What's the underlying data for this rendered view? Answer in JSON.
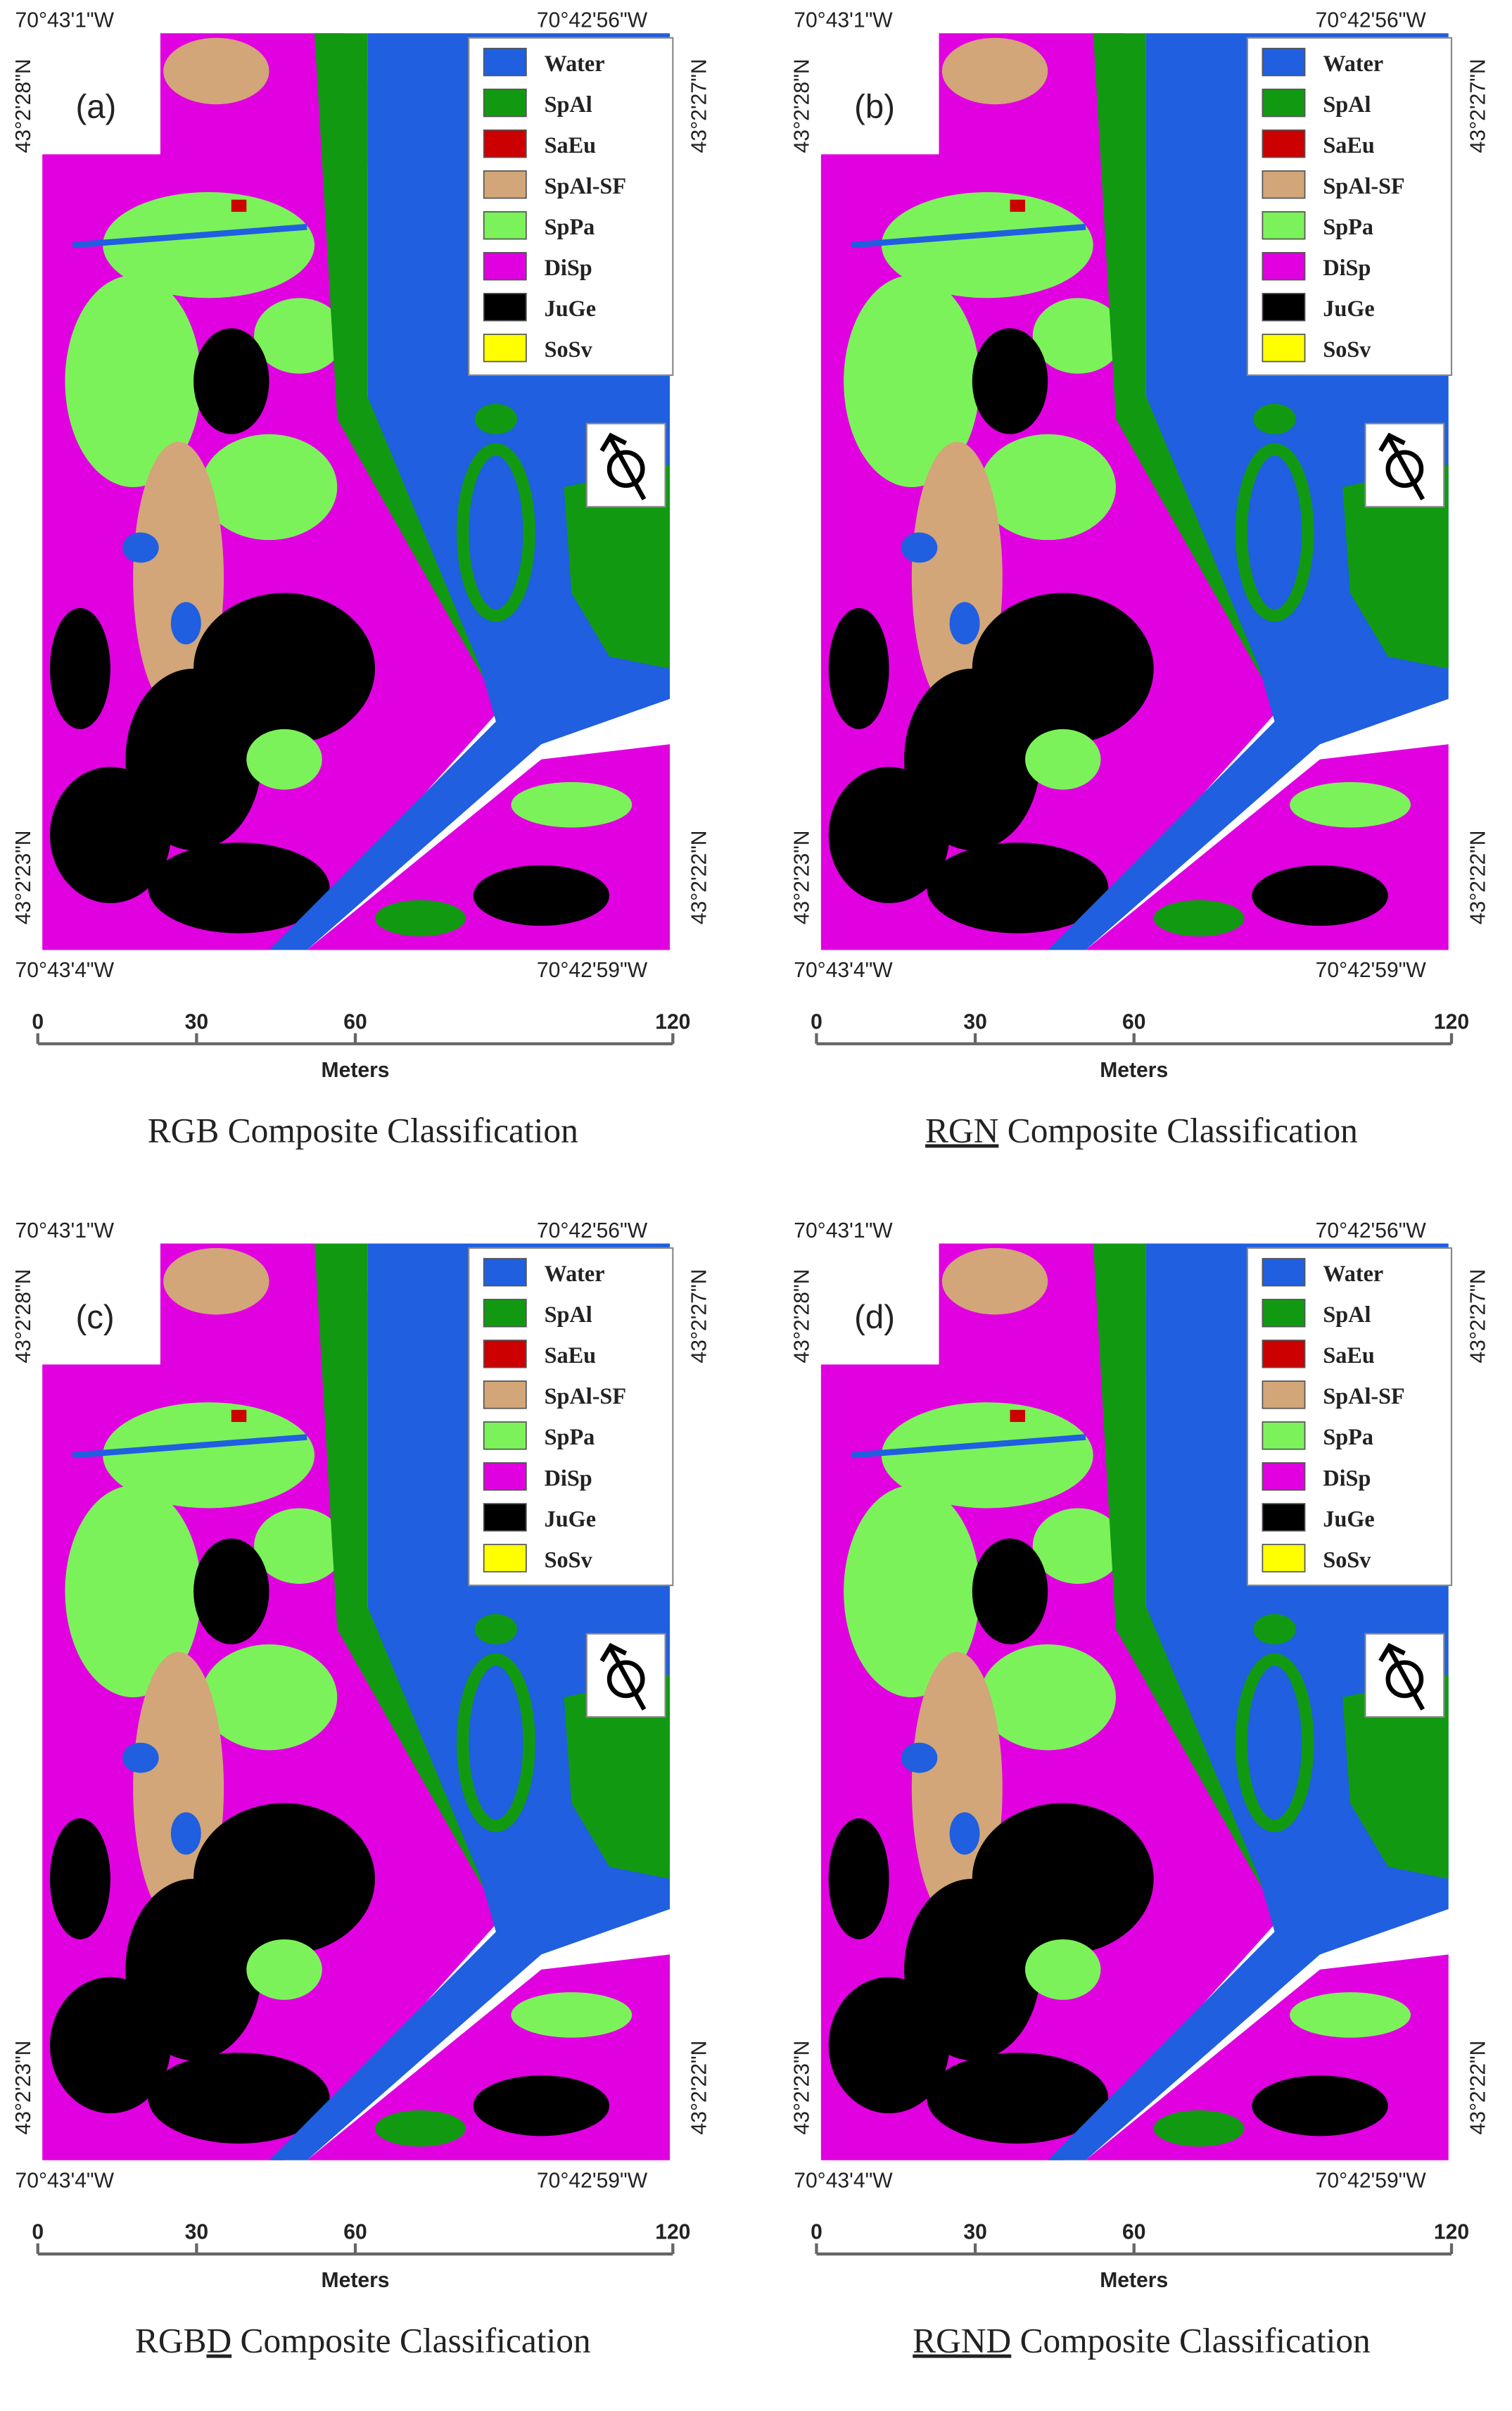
{
  "legend": [
    {
      "label": "Water",
      "color": "#1f5fe0"
    },
    {
      "label": "SpAl",
      "color": "#119a11"
    },
    {
      "label": "SaEu",
      "color": "#cc0000"
    },
    {
      "label": "SpAl-SF",
      "color": "#d2a678"
    },
    {
      "label": "SpPa",
      "color": "#7cf25a"
    },
    {
      "label": "DiSp",
      "color": "#e000e0"
    },
    {
      "label": "JuGe",
      "color": "#000000"
    },
    {
      "label": "SoSv",
      "color": "#ffff00"
    }
  ],
  "scale": {
    "ticks": [
      0,
      30,
      60,
      120
    ],
    "unit": "Meters"
  },
  "panels": [
    {
      "label": "(a)",
      "coords": {
        "top_left": "70°43'1\"W",
        "top_right": "70°42'56\"W",
        "left_top": "43°2'28\"N",
        "right_top": "43°2'27\"N",
        "left_bottom": "43°2'23\"N",
        "right_bottom": "43°2'22\"N",
        "bottom_left": "70°43'4\"W",
        "bottom_right": "70°42'59\"W"
      },
      "caption": [
        {
          "text": "RGB Composite Classification"
        }
      ]
    },
    {
      "label": "(b)",
      "coords": {
        "top_left": "70°43'1\"W",
        "top_right": "70°42'56\"W",
        "left_top": "43°2'28\"N",
        "right_top": "43°2'27\"N",
        "left_bottom": "43°2'23\"N",
        "right_bottom": "43°2'22\"N",
        "bottom_left": "70°43'4\"W",
        "bottom_right": "70°42'59\"W"
      },
      "caption": [
        {
          "text": "RGN",
          "underline": "single"
        },
        {
          "text": " Composite Classification"
        }
      ]
    },
    {
      "label": "(c)",
      "coords": {
        "top_left": "70°43'1\"W",
        "top_right": "70°42'56\"W",
        "left_top": "43°2'28\"N",
        "right_top": "43°2'27\"N",
        "left_bottom": "43°2'23\"N",
        "right_bottom": "43°2'22\"N",
        "bottom_left": "70°43'4\"W",
        "bottom_right": "70°42'59\"W"
      },
      "caption": [
        {
          "text": "RGB"
        },
        {
          "text": "D",
          "underline": "double"
        },
        {
          "text": " Composite Classification"
        }
      ]
    },
    {
      "label": "(d)",
      "coords": {
        "top_left": "70°43'1\"W",
        "top_right": "70°42'56\"W",
        "left_top": "43°2'28\"N",
        "right_top": "43°2'27\"N",
        "left_bottom": "43°2'23\"N",
        "right_bottom": "43°2'22\"N",
        "bottom_left": "70°43'4\"W",
        "bottom_right": "70°42'59\"W"
      },
      "caption": [
        {
          "text": "RGN",
          "underline": "single"
        },
        {
          "text": "D",
          "underline": "double"
        },
        {
          "text": " Composite Classification"
        }
      ]
    }
  ]
}
